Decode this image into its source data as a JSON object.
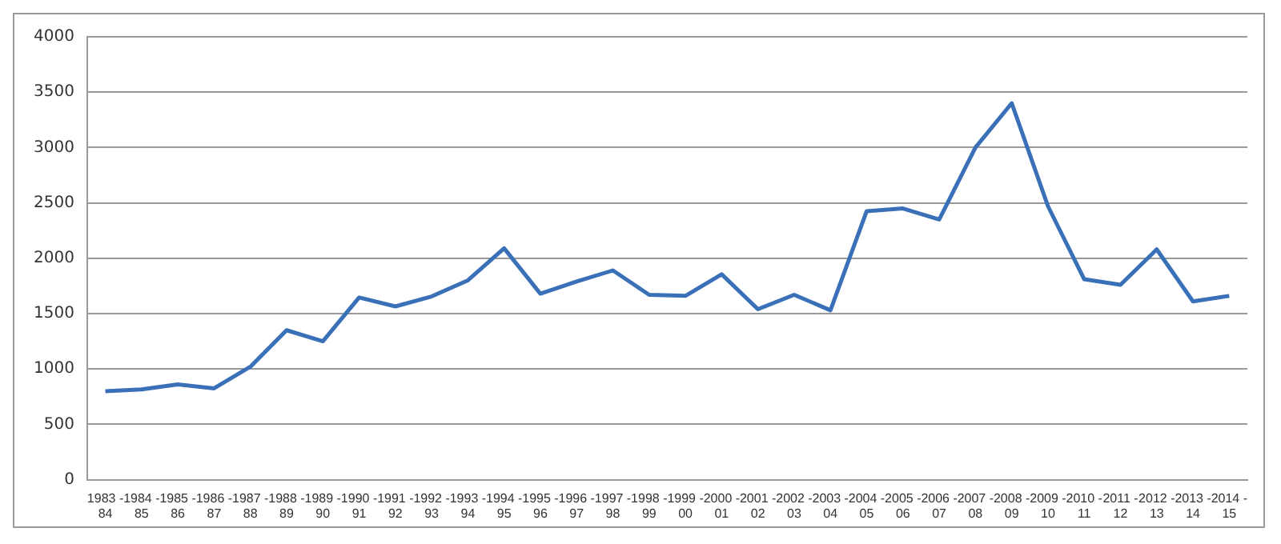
{
  "chart_data": {
    "type": "line",
    "categories": [
      "1983 - 84",
      "1984 - 85",
      "1985 - 86",
      "1986 - 87",
      "1987 - 88",
      "1988 - 89",
      "1989 - 90",
      "1990 - 91",
      "1991 - 92",
      "1992 - 93",
      "1993 - 94",
      "1994 - 95",
      "1995 - 96",
      "1996 - 97",
      "1997 - 98",
      "1998 - 99",
      "1999 - 00",
      "2000 - 01",
      "2001 - 02",
      "2002 - 03",
      "2003 - 04",
      "2004 - 05",
      "2005 - 06",
      "2006 - 07",
      "2007 - 08",
      "2008 - 09",
      "2009 - 10",
      "2010 - 11",
      "2011 - 12",
      "2012 - 13",
      "2013 - 14",
      "2014 - 15"
    ],
    "series": [
      {
        "color": "#3a70b8",
        "values": [
          800,
          815,
          860,
          825,
          1020,
          1350,
          1250,
          1645,
          1565,
          1655,
          1800,
          2090,
          1680,
          1790,
          1890,
          1670,
          1660,
          1855,
          1540,
          1670,
          1530,
          2425,
          2450,
          2350,
          3000,
          3400,
          2470,
          1810,
          1760,
          2080,
          1610,
          1660
        ]
      }
    ],
    "ylim": [
      0,
      4000
    ],
    "yticks": [
      0,
      500,
      1000,
      1500,
      2000,
      2500,
      3000,
      3500,
      4000
    ],
    "grid": "y",
    "legend": false,
    "marker": "none",
    "line_style": "solid"
  }
}
